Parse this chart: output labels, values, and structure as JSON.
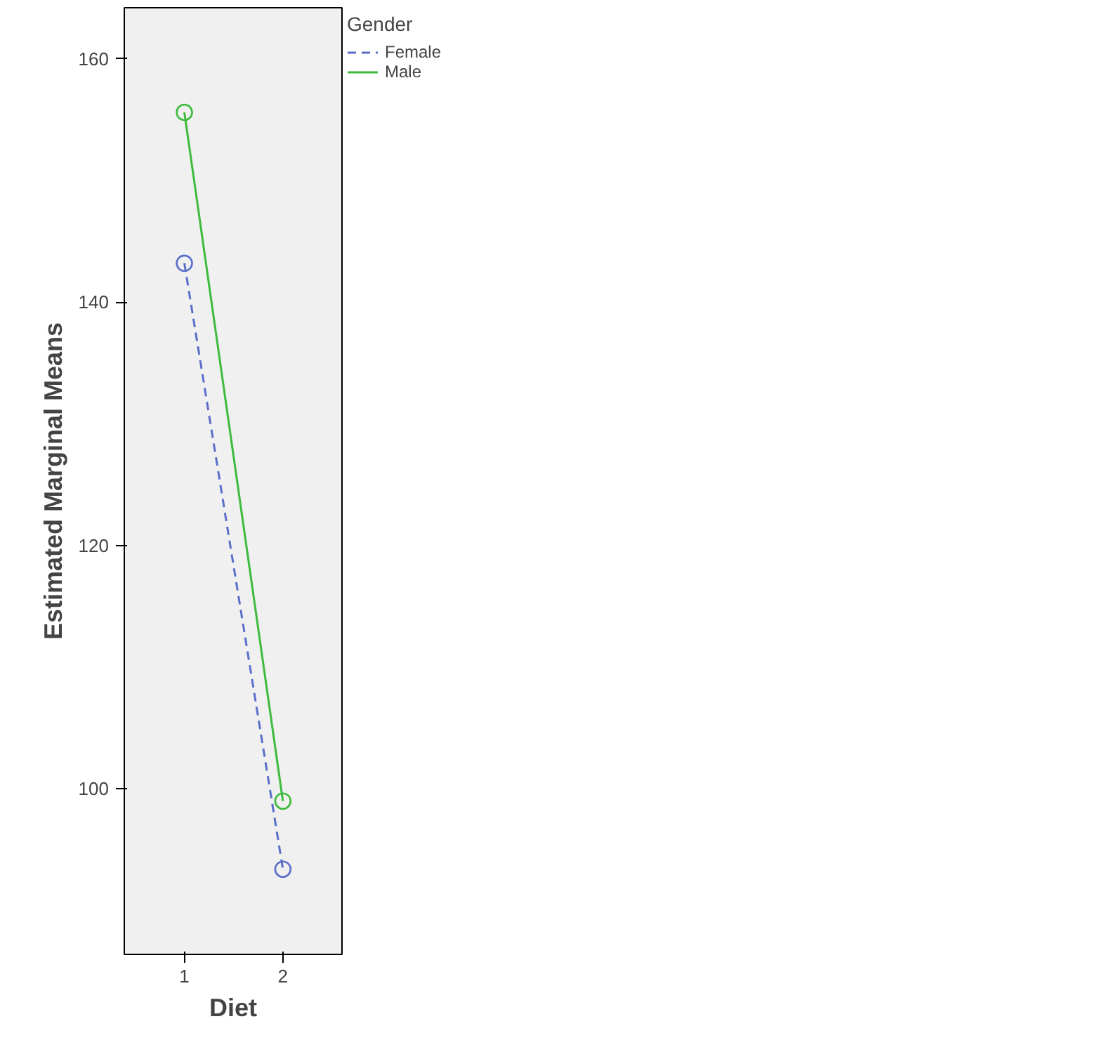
{
  "chart_data": {
    "type": "line",
    "xlabel": "Diet",
    "ylabel": "Estimated Marginal Means",
    "legend_title": "Gender",
    "categories": [
      "1",
      "2"
    ],
    "series": [
      {
        "name": "Female",
        "color": "#5b6fc9",
        "values": [
          143.2,
          93.4
        ],
        "line_style": "dashed"
      },
      {
        "name": "Male",
        "color": "#3dbb3d",
        "values": [
          155.6,
          99.0
        ],
        "line_style": "solid"
      }
    ],
    "ylim": [
      86.4,
      164.2
    ],
    "yticks": [
      100,
      120,
      140,
      160
    ],
    "marker": "circle",
    "grid": false,
    "legend": "top right"
  }
}
